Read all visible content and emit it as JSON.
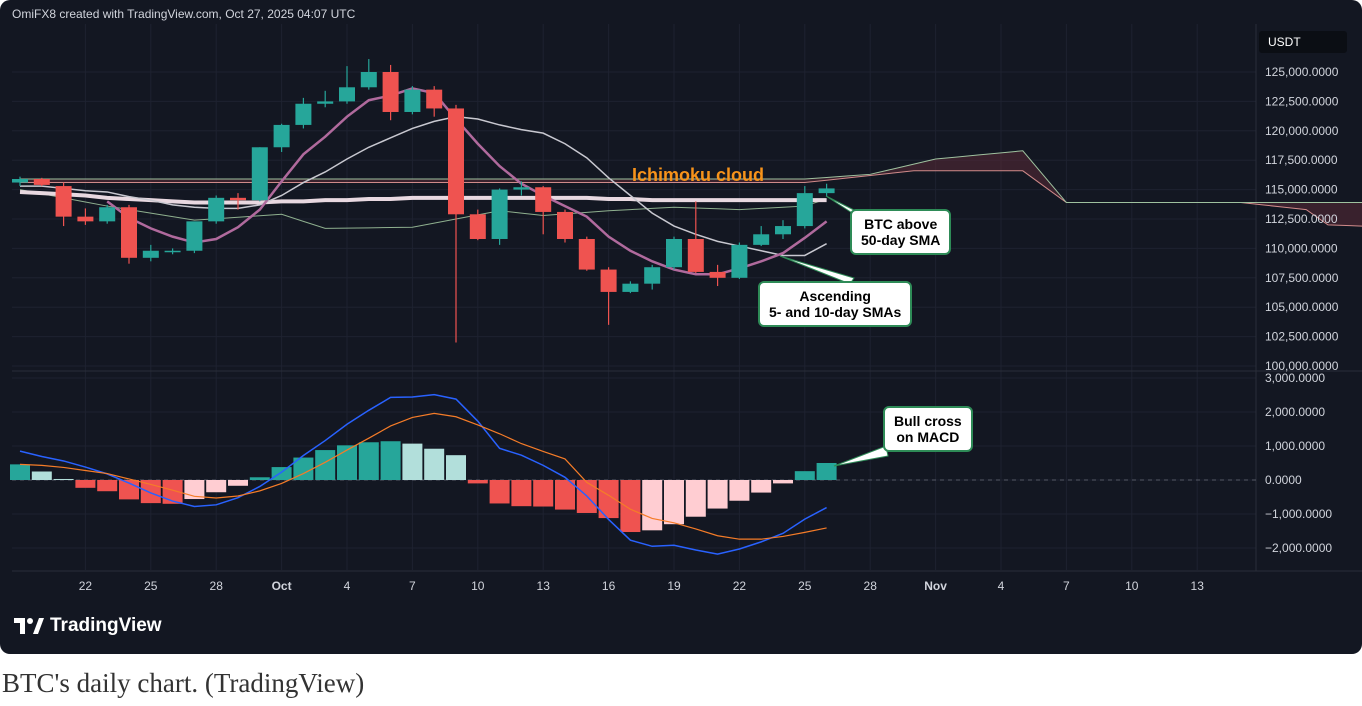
{
  "header": {
    "text": "OmiFX8 created with TradingView.com, Oct 27, 2025 04:07 UTC"
  },
  "currency_badge": "USDT",
  "logo_text": "TradingView",
  "caption": "BTC's daily chart. (TradingView)",
  "annotations": {
    "ichimoku": "Ichimoku cloud",
    "btc_above": [
      "BTC above",
      "50-day SMA"
    ],
    "ascending": [
      "Ascending",
      "5- and 10-day SMAs"
    ],
    "bull_cross": [
      "Bull cross",
      "on MACD"
    ]
  },
  "colors": {
    "background": "#131722",
    "up": "#26a69a",
    "down": "#ef5350",
    "sma5": "#b06a9d",
    "sma10": "#c8c8d0",
    "sma50": "#e8d8e0",
    "macd": "#2962ff",
    "signal": "#f57c28",
    "ichimoku_label": "#f7931a"
  },
  "chart_data": {
    "type": "candlestick",
    "title": "",
    "x_tick_labels": [
      "22",
      "25",
      "28",
      "Oct",
      "4",
      "7",
      "10",
      "13",
      "16",
      "19",
      "22",
      "25",
      "28",
      "Nov",
      "4",
      "7",
      "10",
      "13"
    ],
    "price_axis": {
      "ylim": [
        100000,
        127000
      ],
      "tick_labels": [
        "125,000.0000",
        "122,500.0000",
        "120,000.0000",
        "117,500.0000",
        "115,000.0000",
        "112,500.0000",
        "110,000.0000",
        "107,500.0000",
        "105,000.0000",
        "102,500.0000",
        "100,000.0000"
      ]
    },
    "macd_axis": {
      "ylim": [
        -2500,
        3000
      ],
      "tick_labels": [
        "3,000.0000",
        "2,000.0000",
        "1,000.0000",
        "0.0000",
        "−1,000.0000",
        "−2,000.0000"
      ]
    },
    "candles": [
      {
        "date": "Sep 19",
        "open": 115600,
        "high": 116100,
        "low": 115300,
        "close": 115900
      },
      {
        "date": "Sep 20",
        "open": 115900,
        "high": 116000,
        "low": 115300,
        "close": 115400
      },
      {
        "date": "Sep 21",
        "open": 115300,
        "high": 115600,
        "low": 111900,
        "close": 112700
      },
      {
        "date": "Sep 22",
        "open": 112700,
        "high": 113400,
        "low": 112000,
        "close": 112300
      },
      {
        "date": "Sep 23",
        "open": 112300,
        "high": 113700,
        "low": 112100,
        "close": 113500
      },
      {
        "date": "Sep 24",
        "open": 113500,
        "high": 113700,
        "low": 108700,
        "close": 109200
      },
      {
        "date": "Sep 25",
        "open": 109200,
        "high": 110300,
        "low": 108900,
        "close": 109800
      },
      {
        "date": "Sep 26",
        "open": 109800,
        "high": 110000,
        "low": 109500,
        "close": 109800
      },
      {
        "date": "Sep 27",
        "open": 109800,
        "high": 112200,
        "low": 109600,
        "close": 112300
      },
      {
        "date": "Sep 28",
        "open": 112300,
        "high": 114500,
        "low": 112100,
        "close": 114300
      },
      {
        "date": "Sep 29",
        "open": 114300,
        "high": 114700,
        "low": 113300,
        "close": 114100
      },
      {
        "date": "Sep 30",
        "open": 114100,
        "high": 118600,
        "low": 114000,
        "close": 118600
      },
      {
        "date": "Oct 1",
        "open": 118600,
        "high": 120600,
        "low": 118200,
        "close": 120500
      },
      {
        "date": "Oct 2",
        "open": 120500,
        "high": 122800,
        "low": 120200,
        "close": 122300
      },
      {
        "date": "Oct 3",
        "open": 122300,
        "high": 123400,
        "low": 122000,
        "close": 122500
      },
      {
        "date": "Oct 4",
        "open": 122500,
        "high": 125500,
        "low": 122300,
        "close": 123700
      },
      {
        "date": "Oct 5",
        "open": 123700,
        "high": 126100,
        "low": 123500,
        "close": 125000
      },
      {
        "date": "Oct 6",
        "open": 125000,
        "high": 125600,
        "low": 120900,
        "close": 121600
      },
      {
        "date": "Oct 7",
        "open": 121600,
        "high": 123800,
        "low": 121400,
        "close": 123500
      },
      {
        "date": "Oct 8",
        "open": 123500,
        "high": 123800,
        "low": 121200,
        "close": 121900
      },
      {
        "date": "Oct 9",
        "open": 121900,
        "high": 122200,
        "low": 102000,
        "close": 112900
      },
      {
        "date": "Oct 10",
        "open": 112900,
        "high": 113300,
        "low": 110700,
        "close": 110800
      },
      {
        "date": "Oct 11",
        "open": 110800,
        "high": 115100,
        "low": 110300,
        "close": 115000
      },
      {
        "date": "Oct 12",
        "open": 115000,
        "high": 115700,
        "low": 114500,
        "close": 115200
      },
      {
        "date": "Oct 13",
        "open": 115200,
        "high": 115300,
        "low": 111200,
        "close": 113100
      },
      {
        "date": "Oct 14",
        "open": 113100,
        "high": 113300,
        "low": 110500,
        "close": 110800
      },
      {
        "date": "Oct 15",
        "open": 110800,
        "high": 111000,
        "low": 108100,
        "close": 108200
      },
      {
        "date": "Oct 16",
        "open": 108200,
        "high": 108400,
        "low": 103500,
        "close": 106300
      },
      {
        "date": "Oct 17",
        "open": 106300,
        "high": 107200,
        "low": 106200,
        "close": 107000
      },
      {
        "date": "Oct 18",
        "open": 107000,
        "high": 108600,
        "low": 106500,
        "close": 108400
      },
      {
        "date": "Oct 19",
        "open": 108400,
        "high": 111000,
        "low": 108200,
        "close": 110800
      },
      {
        "date": "Oct 20",
        "open": 110800,
        "high": 114000,
        "low": 107900,
        "close": 108000
      },
      {
        "date": "Oct 21",
        "open": 108000,
        "high": 108600,
        "low": 106800,
        "close": 107500
      },
      {
        "date": "Oct 22",
        "open": 107500,
        "high": 110500,
        "low": 107400,
        "close": 110300
      },
      {
        "date": "Oct 23",
        "open": 110300,
        "high": 111900,
        "low": 110200,
        "close": 111200
      },
      {
        "date": "Oct 24",
        "open": 111200,
        "high": 112400,
        "low": 110800,
        "close": 111900
      },
      {
        "date": "Oct 25",
        "open": 111900,
        "high": 115300,
        "low": 111700,
        "close": 114700
      },
      {
        "date": "Oct 26",
        "open": 114700,
        "high": 115500,
        "low": 114400,
        "close": 115100
      }
    ],
    "sma5": [
      null,
      null,
      null,
      null,
      114000,
      112600,
      111700,
      111000,
      110500,
      110800,
      111800,
      113300,
      115700,
      118000,
      119500,
      121200,
      122600,
      123000,
      123600,
      123200,
      121000,
      118900,
      117000,
      115500,
      114500,
      113600,
      112700,
      111000,
      109800,
      108900,
      108200,
      107800,
      107800,
      108300,
      108900,
      109600,
      110900,
      112300
    ],
    "sma10": [
      115300,
      115300,
      115100,
      114900,
      114800,
      114400,
      114100,
      113700,
      113500,
      113400,
      113400,
      113700,
      114500,
      115600,
      116500,
      117600,
      118600,
      119400,
      120200,
      120800,
      121200,
      121000,
      120500,
      120100,
      119800,
      118900,
      117700,
      116000,
      114500,
      113000,
      111900,
      111200,
      110600,
      110200,
      109800,
      109400,
      109400,
      110400
    ],
    "sma50": [
      114800,
      114700,
      114600,
      114500,
      114300,
      114200,
      114100,
      114000,
      113900,
      113900,
      113900,
      113900,
      114000,
      114000,
      114100,
      114100,
      114200,
      114200,
      114300,
      114300,
      114300,
      114300,
      114300,
      114300,
      114300,
      114300,
      114300,
      114200,
      114200,
      114100,
      114100,
      114100,
      114100,
      114100,
      114100,
      114100,
      114100,
      114100
    ],
    "ichimoku_span_a": [
      {
        "i": 0,
        "v": 115600
      },
      {
        "i": 20,
        "v": 115600
      },
      {
        "i": 36,
        "v": 115600
      },
      {
        "i": 38,
        "v": 116000
      },
      {
        "i": 41,
        "v": 116600
      },
      {
        "i": 46,
        "v": 116600
      },
      {
        "i": 48,
        "v": 113900
      },
      {
        "i": 56,
        "v": 113900
      },
      {
        "i": 59,
        "v": 113300
      },
      {
        "i": 60,
        "v": 112000
      },
      {
        "i": 63,
        "v": 111800
      }
    ],
    "ichimoku_span_b": [
      {
        "i": 0,
        "v": 115900
      },
      {
        "i": 36,
        "v": 115900
      },
      {
        "i": 39,
        "v": 116300
      },
      {
        "i": 42,
        "v": 117600
      },
      {
        "i": 46,
        "v": 118300
      },
      {
        "i": 48,
        "v": 113900
      },
      {
        "i": 63,
        "v": 113900
      }
    ],
    "ichimoku_lagging": [
      {
        "i": 0,
        "v": 115000
      },
      {
        "i": 4,
        "v": 113600
      },
      {
        "i": 8,
        "v": 112400
      },
      {
        "i": 12,
        "v": 112900
      },
      {
        "i": 14,
        "v": 111700
      },
      {
        "i": 18,
        "v": 111800
      },
      {
        "i": 22,
        "v": 113200
      },
      {
        "i": 24,
        "v": 112800
      },
      {
        "i": 27,
        "v": 113200
      },
      {
        "i": 30,
        "v": 113500
      },
      {
        "i": 33,
        "v": 113300
      },
      {
        "i": 36,
        "v": 113600
      },
      {
        "i": 37,
        "v": 114200
      }
    ],
    "macd_histogram": [
      460,
      250,
      30,
      -230,
      -330,
      -570,
      -680,
      -700,
      -560,
      -360,
      -170,
      80,
      380,
      660,
      880,
      1020,
      1110,
      1140,
      1070,
      920,
      730,
      -100,
      -690,
      -770,
      -780,
      -870,
      -970,
      -1120,
      -1530,
      -1480,
      -1300,
      -1080,
      -840,
      -610,
      -370,
      -100,
      260,
      500
    ],
    "macd_line": [
      850,
      690,
      560,
      380,
      180,
      -90,
      -380,
      -620,
      -780,
      -730,
      -520,
      -190,
      230,
      720,
      1160,
      1640,
      2050,
      2430,
      2440,
      2510,
      2380,
      1730,
      930,
      730,
      430,
      80,
      -470,
      -1160,
      -1770,
      -1950,
      -1920,
      -2060,
      -2180,
      -2030,
      -1820,
      -1570,
      -1150,
      -810
    ],
    "signal_line": [
      460,
      430,
      370,
      280,
      190,
      30,
      -130,
      -300,
      -480,
      -530,
      -470,
      -320,
      -100,
      190,
      520,
      880,
      1230,
      1590,
      1840,
      1960,
      1860,
      1620,
      1360,
      1070,
      840,
      620,
      -70,
      -450,
      -860,
      -1130,
      -1260,
      -1440,
      -1640,
      -1740,
      -1740,
      -1660,
      -1540,
      -1410
    ]
  }
}
